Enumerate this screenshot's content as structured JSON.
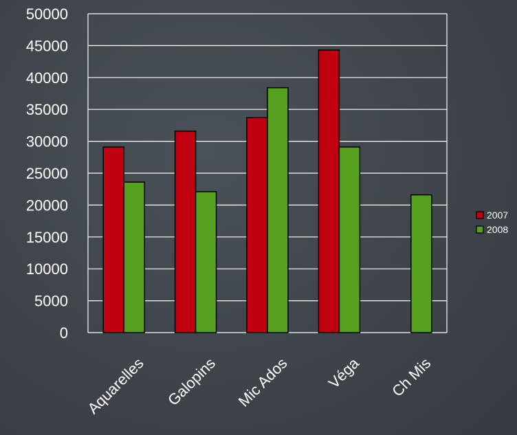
{
  "chart_data": {
    "type": "bar",
    "categories": [
      "Aquarelles",
      "Galopins",
      "Mic Ados",
      "Véga",
      "Ch Mis"
    ],
    "series": [
      {
        "name": "2007",
        "color": "#c00010",
        "values": [
          29100,
          31600,
          33700,
          44300,
          null
        ]
      },
      {
        "name": "2008",
        "color": "#55a01e",
        "values": [
          23600,
          22100,
          38400,
          29100,
          21600
        ]
      }
    ],
    "ylim": [
      0,
      50000
    ],
    "yticks": [
      "0",
      "5000",
      "10000",
      "15000",
      "20000",
      "25000",
      "30000",
      "35000",
      "40000",
      "45000",
      "50000"
    ],
    "grid": true,
    "legend_position": "right",
    "title": "",
    "xlabel": "",
    "ylabel": ""
  },
  "colors": {
    "gridline": "#ffffff",
    "bar_outline": "#000000"
  }
}
